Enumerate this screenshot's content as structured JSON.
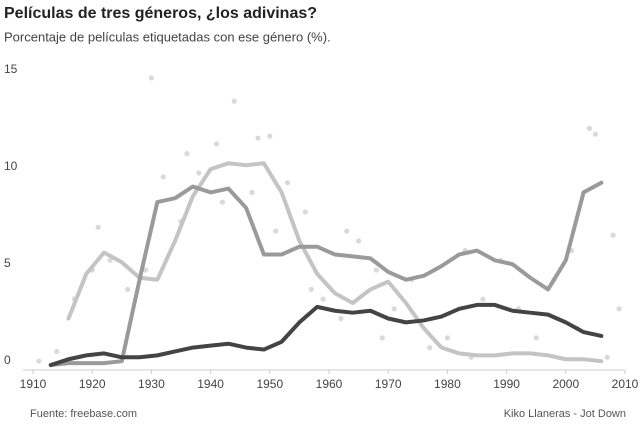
{
  "chart_data": {
    "type": "line",
    "title": "Películas de tres géneros, ¿los adivinas?",
    "subtitle": "Porcentaje de películas etiquetadas con ese género (%).",
    "source": "Fuente: freebase.com",
    "credit": "Kiko Llaneras - Jot Down",
    "x": [
      1913,
      1916,
      1919,
      1922,
      1925,
      1928,
      1931,
      1934,
      1937,
      1940,
      1943,
      1946,
      1949,
      1952,
      1955,
      1958,
      1961,
      1964,
      1967,
      1970,
      1973,
      1976,
      1979,
      1982,
      1985,
      1988,
      1991,
      1994,
      1997,
      2000,
      2003,
      2006
    ],
    "series": [
      {
        "color": "#c4c4c4",
        "values": [
          null,
          2.5,
          4.8,
          5.9,
          5.4,
          4.6,
          4.5,
          6.5,
          8.8,
          10.2,
          10.5,
          10.4,
          10.5,
          9.0,
          6.5,
          4.8,
          3.8,
          3.3,
          4.0,
          4.4,
          3.3,
          2.0,
          1.0,
          0.7,
          0.6,
          0.6,
          0.7,
          0.7,
          0.6,
          0.4,
          0.4,
          0.3
        ]
      },
      {
        "color": "#9a9a9a",
        "values": [
          0.1,
          0.2,
          0.2,
          0.2,
          0.3,
          4.5,
          8.5,
          8.7,
          9.3,
          9.0,
          9.2,
          8.2,
          5.8,
          5.8,
          6.2,
          6.2,
          5.8,
          5.7,
          5.6,
          4.9,
          4.5,
          4.7,
          5.2,
          5.8,
          6.0,
          5.5,
          5.3,
          4.6,
          4.0,
          5.5,
          9.0,
          9.5
        ]
      },
      {
        "color": "#444444",
        "values": [
          0.1,
          0.4,
          0.6,
          0.7,
          0.5,
          0.5,
          0.6,
          0.8,
          1.0,
          1.1,
          1.2,
          1.0,
          0.9,
          1.3,
          2.3,
          3.1,
          2.9,
          2.8,
          2.9,
          2.5,
          2.3,
          2.4,
          2.6,
          3.0,
          3.2,
          3.2,
          2.9,
          2.8,
          2.7,
          2.3,
          1.8,
          1.6
        ]
      }
    ],
    "points": {
      "color": "#d9d9d9",
      "x": [
        1911,
        1914,
        1917,
        1920,
        1921,
        1923,
        1926,
        1929,
        1930,
        1932,
        1935,
        1936,
        1938,
        1941,
        1942,
        1944,
        1947,
        1948,
        1950,
        1951,
        1953,
        1956,
        1957,
        1959,
        1962,
        1963,
        1965,
        1968,
        1969,
        1971,
        1974,
        1977,
        1980,
        1983,
        1984,
        1986,
        1989,
        1992,
        1995,
        1998,
        2001,
        2002,
        2004,
        2005,
        2007,
        2008,
        2009
      ],
      "y": [
        0.3,
        0.8,
        3.5,
        5.0,
        7.2,
        5.5,
        4.0,
        5.0,
        14.9,
        9.8,
        7.5,
        11.0,
        10.0,
        11.5,
        8.5,
        13.7,
        9.0,
        11.8,
        11.9,
        7.0,
        9.5,
        8.0,
        4.0,
        3.5,
        2.5,
        7.0,
        6.5,
        5.0,
        1.5,
        3.0,
        4.5,
        1.0,
        1.5,
        6.0,
        0.5,
        3.5,
        5.5,
        3.0,
        1.5,
        4.5,
        6.0,
        2.0,
        12.3,
        12.0,
        0.5,
        6.8,
        3.0
      ]
    },
    "xlim": [
      1910,
      2010
    ],
    "ylim": [
      0,
      15
    ],
    "xticks": [
      1910,
      1920,
      1930,
      1940,
      1950,
      1960,
      1970,
      1980,
      1990,
      2000,
      2010
    ],
    "yticks": [
      0,
      5,
      10,
      15
    ]
  }
}
